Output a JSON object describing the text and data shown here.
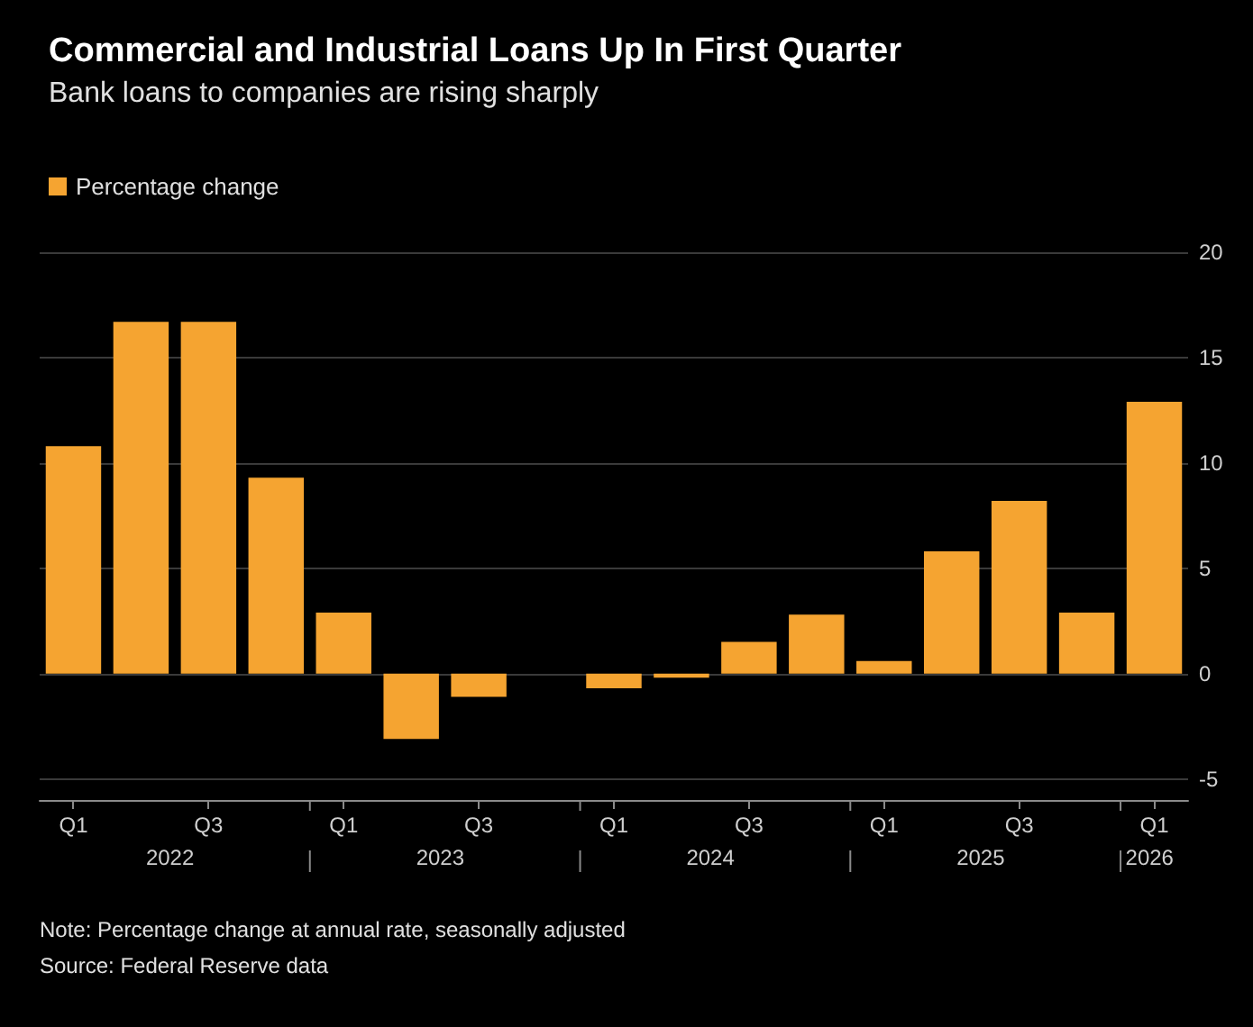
{
  "chart_data": {
    "type": "bar",
    "title": "Commercial and Industrial Loans Up In First Quarter",
    "subtitle": "Bank loans to companies are rising sharply",
    "categories": [
      "Q1",
      null,
      "Q3",
      null,
      "Q1",
      null,
      "Q3",
      null,
      "Q1",
      null,
      "Q3",
      null,
      "Q1",
      null,
      "Q3",
      null,
      "Q1"
    ],
    "series": [
      {
        "name": "Percentage change",
        "color": "#f5a431",
        "values": [
          10.8,
          16.7,
          16.7,
          9.3,
          2.9,
          -3.1,
          -1.1,
          0,
          -0.7,
          -0.2,
          1.5,
          2.8,
          0.6,
          5.8,
          8.2,
          2.9,
          12.9
        ]
      }
    ],
    "ylim": [
      -6,
      20
    ],
    "yticks": [
      -5,
      0,
      5,
      10,
      15,
      20
    ],
    "grid": "y",
    "legend": "top left",
    "annotations": [
      {
        "text": "2022"
      },
      {
        "text": "2023"
      },
      {
        "text": "2024"
      },
      {
        "text": "2025"
      },
      {
        "text": "2026"
      },
      "Note: Percentage change at annual rate, seasonally adjusted",
      "Source: Federal Reserve data"
    ]
  }
}
